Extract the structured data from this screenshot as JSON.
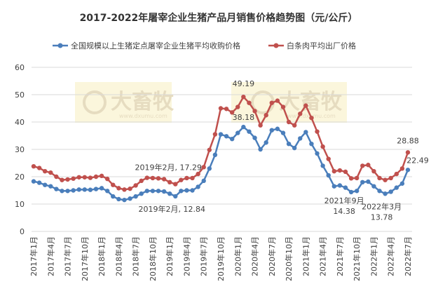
{
  "chart_data": {
    "type": "line",
    "title": "2017-2022年屠宰企业生猪产品月销售价格趋势图（元/公斤）",
    "watermark": "大畜牧",
    "watermark_url": "www.dxumu.com",
    "categories": [
      "2017年1月",
      null,
      null,
      "2017年4月",
      null,
      null,
      "2017年7月",
      null,
      null,
      "2017年10月",
      null,
      null,
      "2018年1月",
      null,
      null,
      "2018年4月",
      null,
      null,
      "2018年7月",
      null,
      null,
      "2018年10月",
      null,
      null,
      "2019年1月",
      null,
      null,
      "2019年4月",
      null,
      null,
      "2019年7月",
      null,
      null,
      "2019年10月",
      null,
      null,
      "2020年1月",
      null,
      null,
      "2020年4月",
      null,
      null,
      "2020年7月",
      null,
      null,
      "2020年10月",
      null,
      null,
      "2021年1月",
      null,
      null,
      "2021年4月",
      null,
      null,
      "2021年7月",
      null,
      null,
      "2021年10月",
      null,
      null,
      "2022年1月",
      null,
      null,
      "2022年4月",
      null,
      null,
      "2022年7月"
    ],
    "ylim": [
      0,
      60
    ],
    "yticks": [
      0,
      10,
      20,
      30,
      40,
      50,
      60
    ],
    "grid": true,
    "series": [
      {
        "name": "全国规模以上生猪定点屠宰企业生猪平均收购价格",
        "color": "#4a7ebb",
        "values": [
          18.3,
          17.8,
          17.0,
          16.5,
          15.5,
          14.8,
          14.8,
          15.0,
          15.3,
          15.3,
          15.2,
          15.5,
          15.8,
          14.8,
          12.8,
          11.8,
          11.5,
          12.0,
          12.8,
          13.8,
          14.8,
          14.8,
          14.8,
          14.6,
          13.8,
          12.84,
          14.8,
          15.0,
          15.0,
          16.3,
          18.5,
          23.0,
          28.0,
          35.5,
          34.8,
          33.8,
          36.0,
          38.18,
          36.5,
          34.2,
          30.0,
          32.5,
          37.0,
          37.5,
          36.0,
          32.0,
          30.5,
          34.0,
          36.3,
          32.0,
          28.5,
          24.0,
          20.5,
          16.5,
          16.8,
          16.0,
          14.38,
          14.8,
          18.0,
          18.2,
          16.5,
          14.8,
          13.78,
          14.5,
          16.0,
          17.5,
          22.49
        ],
        "value_labels": [
          null,
          null,
          null,
          null,
          null,
          null,
          null,
          null,
          null,
          null,
          null,
          null,
          null,
          null,
          null,
          null,
          null,
          null,
          null,
          null,
          null,
          null,
          null,
          null,
          null,
          "2019年2月, 12.84",
          null,
          null,
          null,
          null,
          null,
          null,
          null,
          null,
          null,
          null,
          null,
          "38.18",
          null,
          null,
          null,
          null,
          null,
          null,
          null,
          null,
          null,
          null,
          null,
          null,
          null,
          null,
          null,
          null,
          null,
          null,
          [
            "2021年9月",
            "14.38"
          ],
          null,
          null,
          null,
          null,
          null,
          [
            "2022年3月",
            "13.78"
          ],
          null,
          null,
          null,
          "22.49"
        ]
      },
      {
        "name": "白条肉平均出厂价格",
        "color": "#c0504d",
        "values": [
          23.8,
          23.2,
          22.0,
          21.5,
          20.0,
          18.8,
          19.0,
          19.3,
          19.8,
          19.8,
          19.6,
          20.0,
          20.3,
          19.2,
          17.0,
          15.8,
          15.3,
          15.6,
          16.8,
          18.5,
          19.6,
          19.5,
          19.4,
          19.1,
          18.0,
          17.29,
          18.8,
          19.5,
          19.5,
          21.0,
          23.5,
          29.8,
          35.5,
          45.0,
          44.8,
          43.5,
          45.5,
          49.19,
          47.0,
          44.0,
          38.8,
          42.5,
          47.0,
          47.8,
          45.5,
          40.0,
          38.8,
          43.0,
          46.0,
          41.5,
          36.5,
          31.0,
          26.5,
          22.0,
          22.3,
          21.8,
          19.4,
          19.5,
          24.0,
          24.3,
          22.0,
          19.5,
          18.8,
          19.5,
          21.0,
          23.0,
          28.88
        ],
        "value_labels": [
          null,
          null,
          null,
          null,
          null,
          null,
          null,
          null,
          null,
          null,
          null,
          null,
          null,
          null,
          null,
          null,
          null,
          null,
          null,
          null,
          null,
          null,
          null,
          null,
          null,
          "2019年2月, 17.29",
          null,
          null,
          null,
          null,
          null,
          null,
          null,
          null,
          null,
          null,
          null,
          "49.19",
          null,
          null,
          null,
          null,
          null,
          null,
          null,
          null,
          null,
          null,
          null,
          null,
          null,
          null,
          null,
          null,
          null,
          null,
          null,
          null,
          null,
          null,
          null,
          null,
          null,
          null,
          null,
          null,
          "28.88"
        ]
      }
    ]
  }
}
